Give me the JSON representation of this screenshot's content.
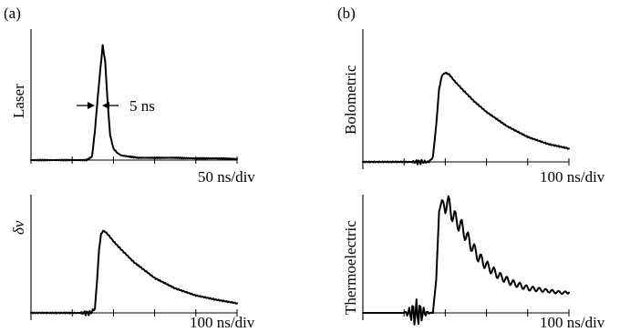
{
  "figure": {
    "panel_a_label": "(a)",
    "panel_b_label": "(b)",
    "fwhm_annotation": "5 ns"
  },
  "chart_data": [
    {
      "id": "laser",
      "type": "line",
      "panel": "(a)",
      "ylabel": "Laser",
      "xlabel": "50 ns/div",
      "x_divisions": 5,
      "y_range": [
        0,
        1
      ],
      "series": [
        {
          "x": [
            0.0,
            0.5,
            1.0,
            1.35,
            1.48,
            1.55,
            1.62,
            1.68,
            1.74,
            1.8,
            1.86,
            1.92,
            2.0,
            2.1,
            2.2,
            2.4,
            2.6,
            3.0,
            3.5,
            4.0,
            4.5,
            5.0
          ],
          "y": [
            0.0,
            0.0,
            0.0,
            0.0,
            0.03,
            0.25,
            0.55,
            0.78,
            1.0,
            0.86,
            0.5,
            0.22,
            0.1,
            0.06,
            0.04,
            0.03,
            0.02,
            0.02,
            0.02,
            0.015,
            0.015,
            0.01
          ]
        }
      ]
    },
    {
      "id": "dv",
      "type": "line",
      "panel": "(a)",
      "ylabel": "δv",
      "xlabel": "100 ns/div",
      "x_divisions": 5,
      "y_range": [
        -0.1,
        1
      ],
      "series": [
        {
          "x": [
            0.0,
            0.5,
            1.0,
            1.3,
            1.45,
            1.55,
            1.6,
            1.65,
            1.7,
            1.75,
            1.8,
            1.9,
            2.0,
            2.2,
            2.5,
            3.0,
            3.5,
            4.0,
            4.5,
            5.0
          ],
          "y": [
            0.0,
            0.0,
            0.0,
            0.0,
            0.0,
            0.05,
            0.35,
            0.72,
            0.9,
            0.94,
            0.93,
            0.88,
            0.82,
            0.72,
            0.58,
            0.4,
            0.28,
            0.2,
            0.15,
            0.11
          ]
        }
      ]
    },
    {
      "id": "bolometric",
      "type": "line",
      "panel": "(b)",
      "ylabel": "Bolometric",
      "xlabel": "100 ns/div",
      "x_divisions": 5,
      "y_range": [
        -0.1,
        1
      ],
      "series": [
        {
          "x": [
            0.0,
            0.5,
            1.0,
            1.3,
            1.6,
            1.7,
            1.78,
            1.85,
            1.92,
            2.0,
            2.1,
            2.2,
            2.4,
            2.7,
            3.0,
            3.5,
            4.0,
            4.5,
            5.0
          ],
          "y": [
            0.0,
            0.0,
            0.0,
            0.0,
            0.0,
            0.05,
            0.42,
            0.82,
            0.97,
            1.0,
            0.98,
            0.92,
            0.82,
            0.68,
            0.56,
            0.4,
            0.28,
            0.2,
            0.15
          ]
        }
      ]
    },
    {
      "id": "thermoelectric",
      "type": "line",
      "panel": "(b)",
      "ylabel": "Thermoelectric",
      "xlabel": "100 ns/div",
      "x_divisions": 5,
      "y_range": [
        -0.2,
        1
      ],
      "series": [
        {
          "x": [
            0.0,
            0.5,
            1.0,
            1.3,
            1.5,
            1.7,
            1.78,
            1.85,
            1.92,
            2.0,
            2.1,
            2.2,
            2.4,
            2.6,
            2.8,
            3.0,
            3.3,
            3.6,
            4.0,
            4.4,
            4.8,
            5.0
          ],
          "y": [
            0.0,
            0.0,
            0.0,
            0.0,
            0.0,
            0.0,
            0.3,
            0.9,
            1.0,
            0.97,
            0.95,
            0.85,
            0.76,
            0.62,
            0.5,
            0.42,
            0.33,
            0.27,
            0.22,
            0.2,
            0.18,
            0.18
          ]
        }
      ]
    }
  ]
}
